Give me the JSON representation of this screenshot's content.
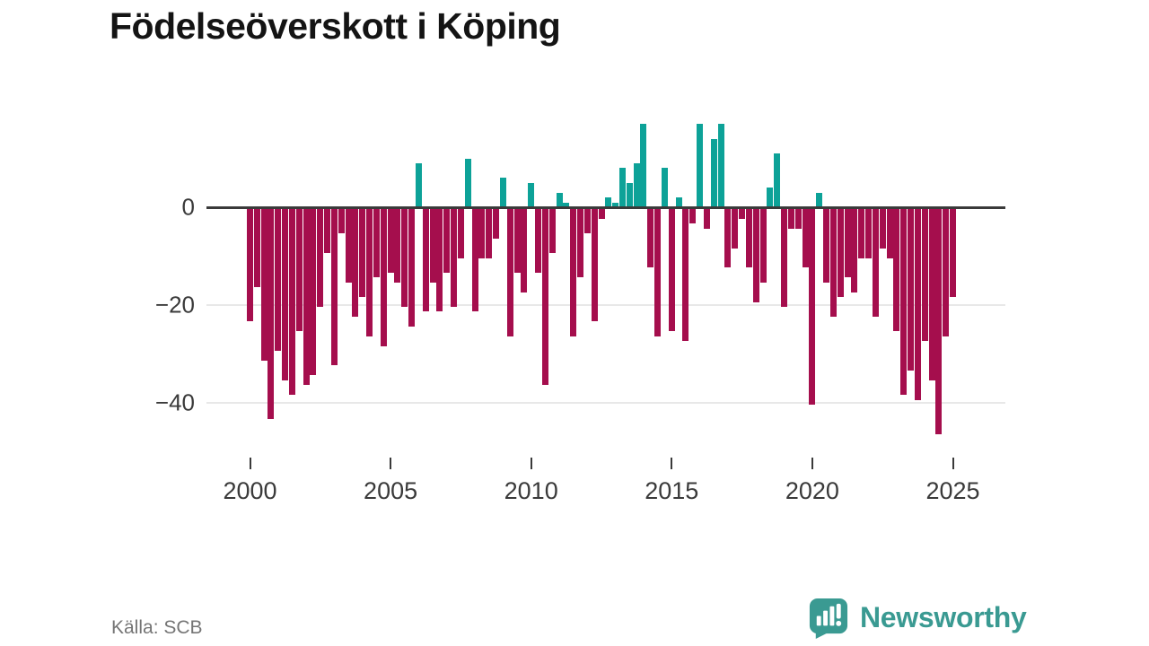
{
  "title": "Födelseöverskott i Köping",
  "source": "Källa: SCB",
  "branding": {
    "wordmark": "Newsworthy",
    "icon": "newsworthy-speech-bubble-chart-icon",
    "brand_color": "#3a9a92"
  },
  "colors": {
    "positive_bar": "#0da298",
    "negative_bar": "#a50e4d",
    "zero_line": "#3a3a3a",
    "gridline": "#e8e8e8",
    "axis_text": "#3a3a3a",
    "source_text": "#757575",
    "title_text": "#141414",
    "background": "#ffffff"
  },
  "chart_data": {
    "type": "bar",
    "title": "Födelseöverskott i Köping",
    "xlabel": "",
    "ylabel": "",
    "x_start": "2000-Q1",
    "frequency": "quarterly",
    "x_tick_labels": [
      "2000",
      "2005",
      "2010",
      "2015",
      "2020",
      "2025"
    ],
    "x_tick_years": [
      2000,
      2005,
      2010,
      2015,
      2020,
      2025
    ],
    "y_ticks": [
      {
        "label": "0",
        "value": 0
      },
      {
        "label": "−20",
        "value": -20
      },
      {
        "label": "−40",
        "value": -40
      }
    ],
    "ylim": [
      -48,
      18
    ],
    "grid": "horizontal",
    "legend": "none",
    "color_rule": "teal when positive, crimson when negative",
    "values": [
      -23,
      -16,
      -31,
      -43,
      -29,
      -35,
      -38,
      -25,
      -36,
      -34,
      -20,
      -9,
      -32,
      -5,
      -15,
      -22,
      -18,
      -26,
      -14,
      -28,
      -13,
      -15,
      -20,
      -24,
      9,
      -21,
      -15,
      -21,
      -13,
      -20,
      -10,
      10,
      -21,
      -10,
      -10,
      -6,
      6,
      -26,
      -13,
      -17,
      5,
      -13,
      -36,
      -9,
      3,
      1,
      -26,
      -14,
      -5,
      -23,
      -2,
      2,
      1,
      8,
      5,
      9,
      17,
      -12,
      -26,
      8,
      -25,
      2,
      -27,
      -3,
      17,
      -4,
      14,
      17,
      -12,
      -8,
      -2,
      -12,
      -19,
      -15,
      4,
      11,
      -20,
      -4,
      -4,
      -12,
      -40,
      3,
      -15,
      -22,
      -18,
      -14,
      -17,
      -10,
      -10,
      -22,
      -8,
      -10,
      -25,
      -38,
      -33,
      -39,
      -27,
      -35,
      -46,
      -26,
      -18
    ]
  }
}
